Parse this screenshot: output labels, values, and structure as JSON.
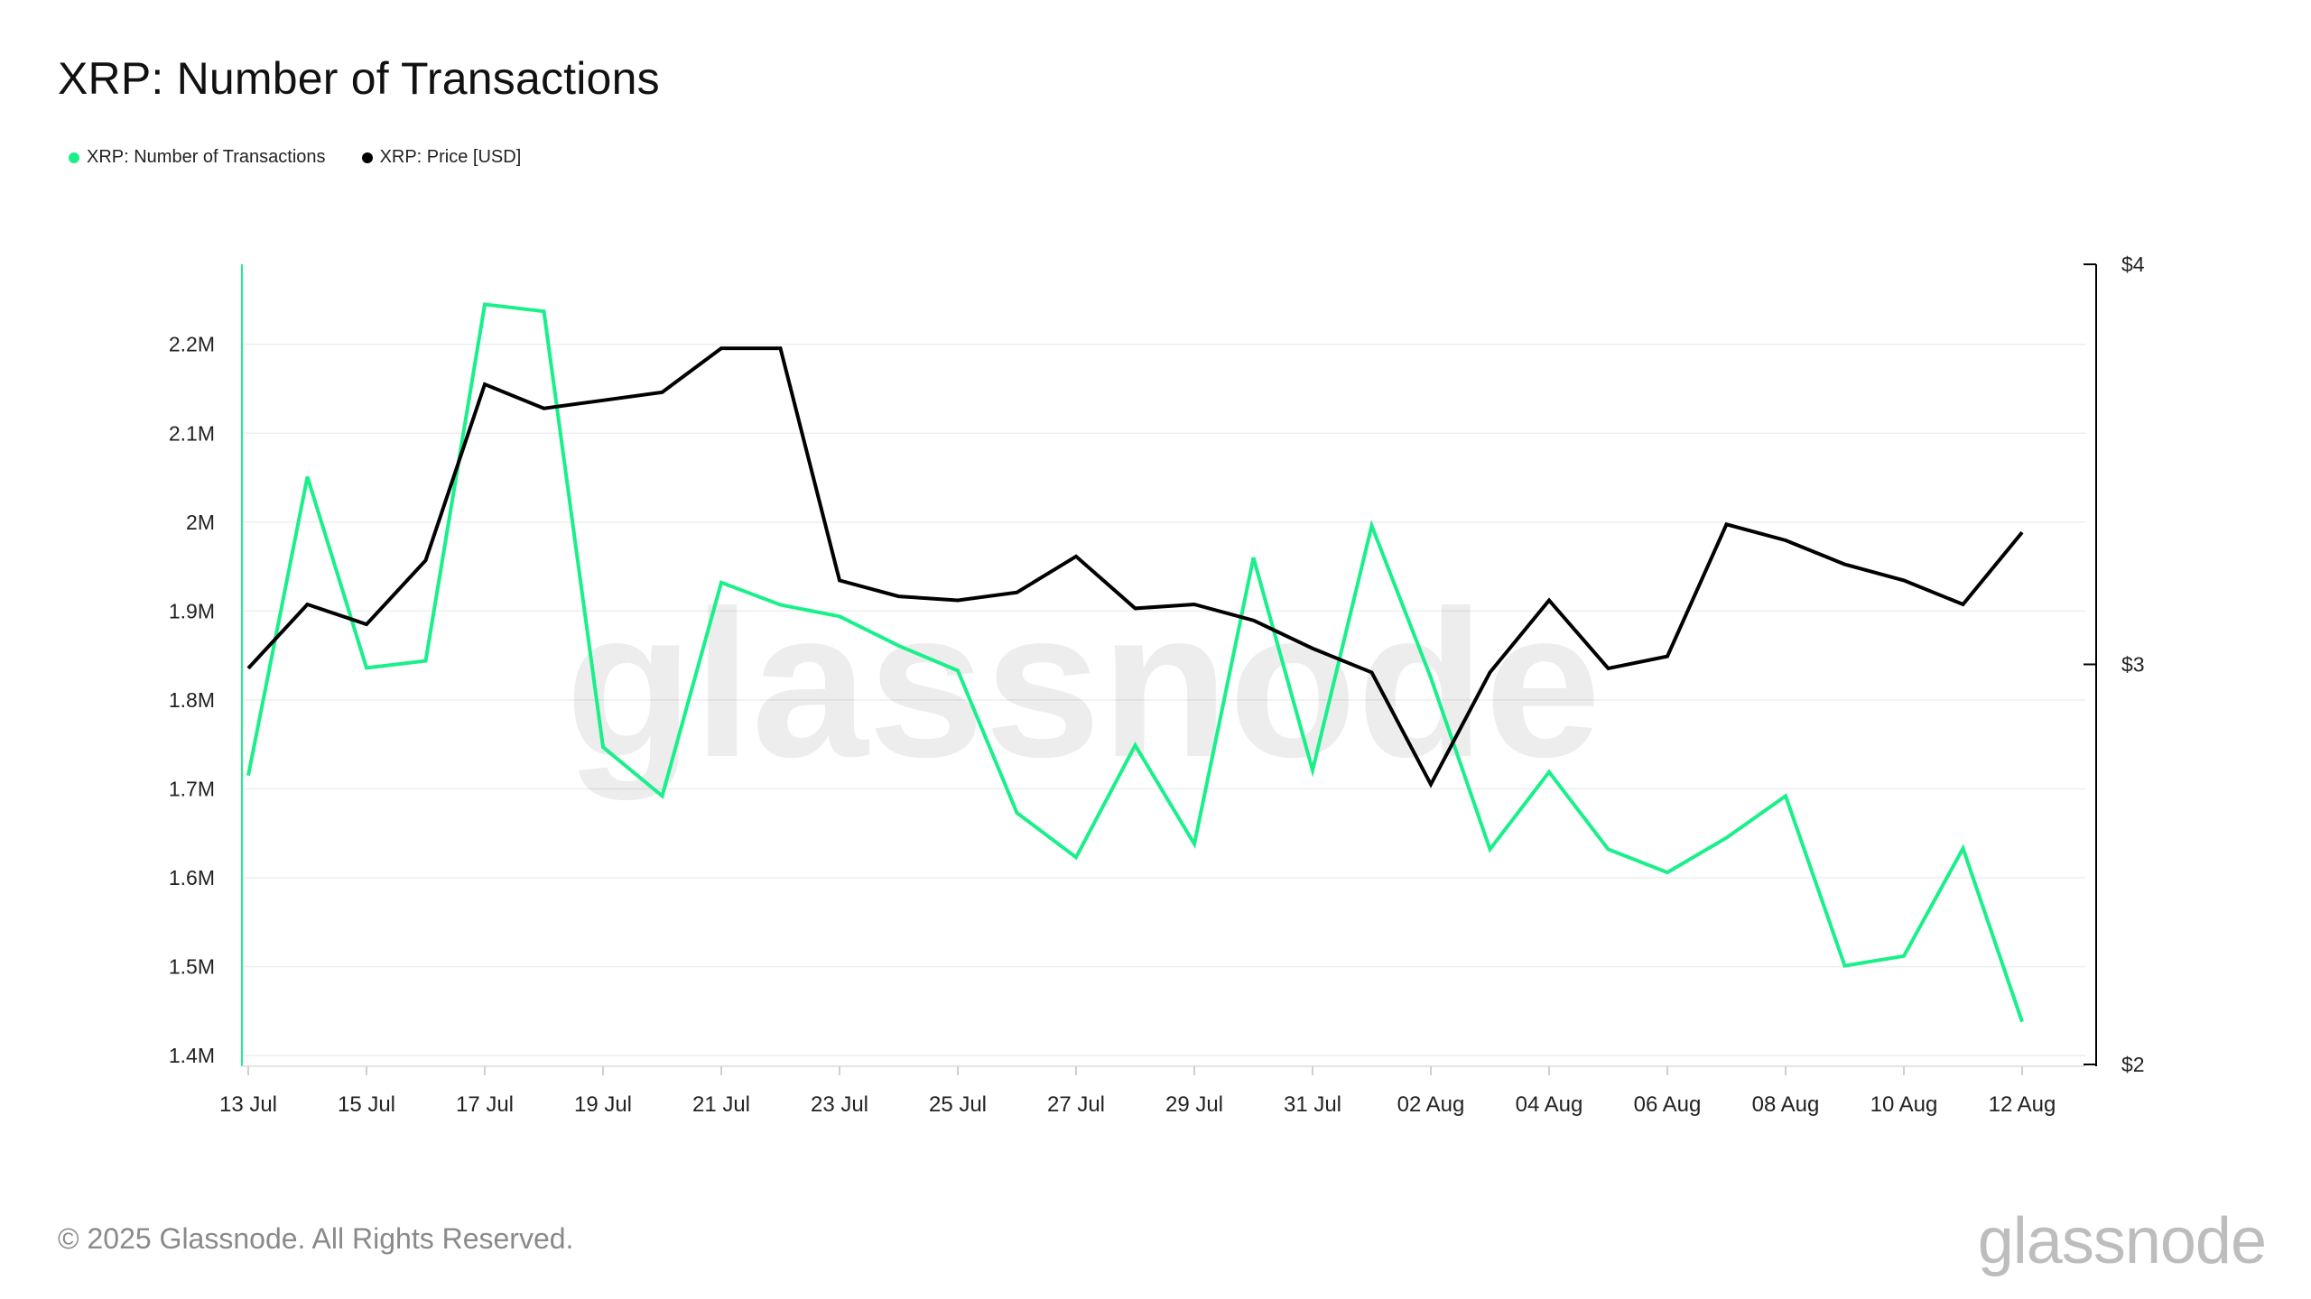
{
  "title": "XRP: Number of Transactions",
  "footer": "© 2025 Glassnode. All Rights Reserved.",
  "brand": "glassnode",
  "watermark": "glassnode",
  "colors": {
    "transactions": "#19f08a",
    "price": "#000000",
    "grid": "#eeeeee",
    "axis": "#000000"
  },
  "chart_data": {
    "type": "line",
    "title": "XRP: Number of Transactions",
    "legend_placement": "top-left",
    "grid": true,
    "x": [
      "13 Jul",
      "14 Jul",
      "15 Jul",
      "16 Jul",
      "17 Jul",
      "18 Jul",
      "19 Jul",
      "20 Jul",
      "21 Jul",
      "22 Jul",
      "23 Jul",
      "24 Jul",
      "25 Jul",
      "26 Jul",
      "27 Jul",
      "28 Jul",
      "29 Jul",
      "30 Jul",
      "31 Jul",
      "01 Aug",
      "02 Aug",
      "03 Aug",
      "04 Aug",
      "05 Aug",
      "06 Aug",
      "07 Aug",
      "08 Aug",
      "09 Aug",
      "10 Aug",
      "11 Aug",
      "12 Aug"
    ],
    "x_tick_labels": [
      "13 Jul",
      "15 Jul",
      "17 Jul",
      "19 Jul",
      "21 Jul",
      "23 Jul",
      "25 Jul",
      "27 Jul",
      "29 Jul",
      "31 Jul",
      "02 Aug",
      "04 Aug",
      "06 Aug",
      "08 Aug",
      "10 Aug",
      "12 Aug"
    ],
    "y_left": {
      "ticks": [
        1400000,
        1500000,
        1600000,
        1700000,
        1800000,
        1900000,
        2000000,
        2100000,
        2200000
      ],
      "tick_labels": [
        "1.4M",
        "1.5M",
        "1.6M",
        "1.7M",
        "1.8M",
        "1.9M",
        "2M",
        "2.1M",
        "2.2M"
      ],
      "range": [
        1390000,
        2290000
      ]
    },
    "y_right": {
      "ticks": [
        2,
        3,
        4
      ],
      "tick_labels": [
        "$2",
        "$3",
        "$4"
      ],
      "range": [
        2,
        4
      ]
    },
    "series": [
      {
        "name": "XRP: Number of Transactions",
        "axis": "left",
        "color": "#19f08a",
        "values": [
          1715000,
          2051000,
          1836000,
          1844000,
          2245000,
          2237000,
          1747000,
          1692000,
          1932000,
          1907000,
          1894000,
          1861000,
          1833000,
          1673000,
          1623000,
          1749000,
          1638000,
          1960000,
          1721000,
          1996000,
          1825000,
          1632000,
          1719000,
          1632000,
          1606000,
          1645000,
          1692000,
          1501000,
          1512000,
          1633000,
          1438000
        ]
      },
      {
        "name": "XRP: Price [USD]",
        "axis": "right",
        "color": "#000000",
        "values": [
          2.99,
          3.15,
          3.1,
          3.26,
          3.7,
          3.64,
          3.66,
          3.68,
          3.79,
          3.79,
          3.21,
          3.17,
          3.16,
          3.18,
          3.27,
          3.14,
          3.15,
          3.11,
          3.04,
          2.98,
          2.7,
          2.98,
          3.16,
          2.99,
          3.02,
          3.35,
          3.31,
          3.25,
          3.21,
          3.15,
          3.33
        ]
      }
    ]
  }
}
